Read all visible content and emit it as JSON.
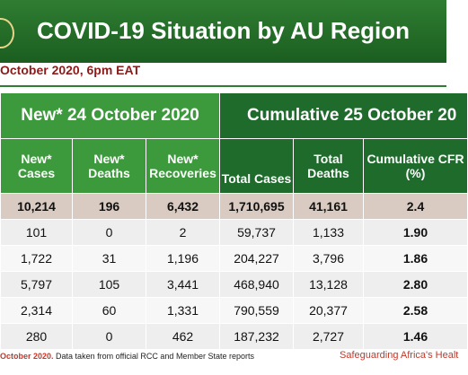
{
  "header": {
    "title": "COVID-19 Situation by AU Region",
    "date": "October 2020, 6pm EAT"
  },
  "table": {
    "group_headers": [
      "New* 24 October 2020",
      "Cumulative 25 October 20"
    ],
    "columns": [
      "New* Cases",
      "New* Deaths",
      "New* Recoveries",
      "Total Cases",
      "Total Deaths",
      "Cumulative CFR (%)"
    ],
    "rows": [
      [
        "10,214",
        "196",
        "6,432",
        "1,710,695",
        "41,161",
        "2.4"
      ],
      [
        "101",
        "0",
        "2",
        "59,737",
        "1,133",
        "1.90"
      ],
      [
        "1,722",
        "31",
        "1,196",
        "204,227",
        "3,796",
        "1.86"
      ],
      [
        "5,797",
        "105",
        "3,441",
        "468,940",
        "13,128",
        "2.80"
      ],
      [
        "2,314",
        "60",
        "1,331",
        "790,559",
        "20,377",
        "2.58"
      ],
      [
        "280",
        "0",
        "462",
        "187,232",
        "2,727",
        "1.46"
      ]
    ]
  },
  "footer": {
    "source_date": "October 2020.",
    "source_text": "Data taken from official RCC and Member State reports",
    "tagline": "Safeguarding Africa's Healt"
  }
}
